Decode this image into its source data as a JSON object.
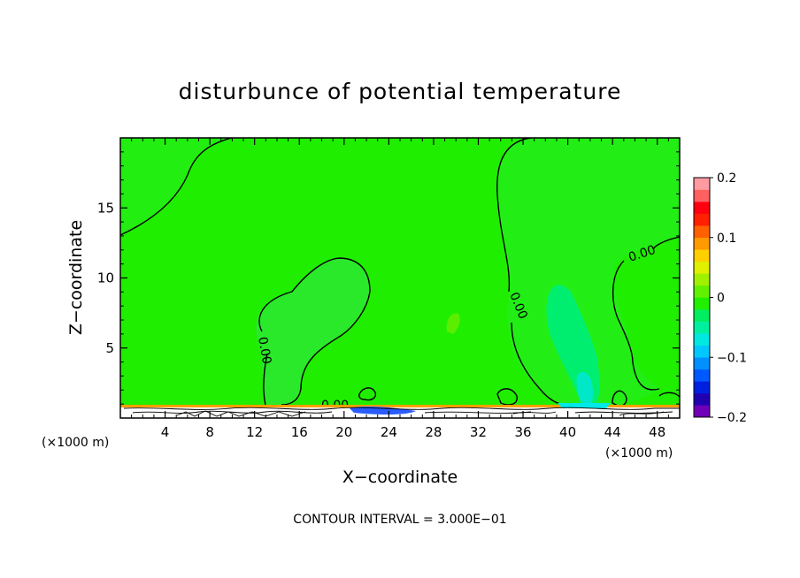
{
  "chart_data": {
    "type": "heatmap",
    "title": "disturbunce of potential temperature",
    "xlabel": "X−coordinate",
    "ylabel": "Z−coordinate",
    "x_unit_left": "(×1000 m)",
    "x_unit_right": "(×1000 m)",
    "footer": "CONTOUR INTERVAL = 3.000E−01",
    "xlim": [
      0,
      50
    ],
    "ylim": [
      0,
      20
    ],
    "x_ticks": [
      4,
      8,
      12,
      16,
      20,
      24,
      28,
      32,
      36,
      40,
      44,
      48
    ],
    "y_ticks": [
      5,
      10,
      15
    ],
    "contour_label": "0.00",
    "colorbar": {
      "range": [
        -0.2,
        0.2
      ],
      "tick_labels": [
        "0.2",
        "0.1",
        "0",
        "−0.1",
        "−0.2"
      ],
      "tick_values": [
        0.2,
        0.1,
        0,
        -0.1,
        -0.2
      ],
      "colors": [
        "#6f00b8",
        "#2000b0",
        "#0020e0",
        "#0058ff",
        "#0090ff",
        "#00c8ff",
        "#00e8e0",
        "#00f0a0",
        "#00ee60",
        "#20f000",
        "#60f000",
        "#a0f000",
        "#e0f000",
        "#ffd000",
        "#ff9a00",
        "#ff6000",
        "#ff2000",
        "#ff0010",
        "#ff6060",
        "#ff9aa0"
      ]
    },
    "background_value": 0.0,
    "features": [
      {
        "name": "weak negative plume",
        "x_range": [
          38.5,
          43
        ],
        "z_range": [
          0.5,
          9.5
        ],
        "value": -0.03
      },
      {
        "name": "small blob",
        "x": 30,
        "z": 6.8,
        "value": 0.03
      }
    ]
  }
}
